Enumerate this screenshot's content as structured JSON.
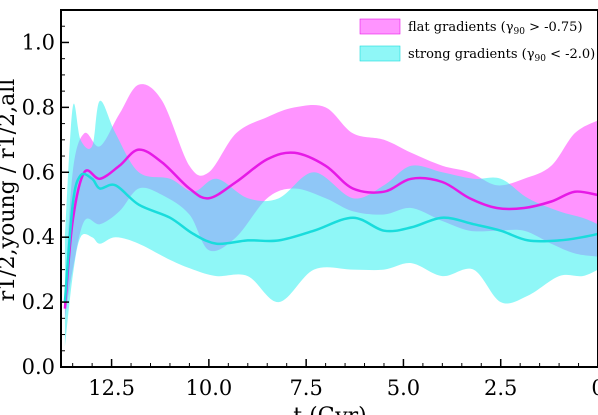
{
  "chart_data": {
    "type": "line",
    "xlabel": "t (Gyr)",
    "ylabel": "r1/2,young / r1/2,all",
    "xlim": [
      13.8,
      0.0
    ],
    "ylim": [
      0.0,
      1.1
    ],
    "x_ticks": [
      12.5,
      10.0,
      7.5,
      5.0,
      2.5,
      0.0
    ],
    "x_tick_labels": [
      "12.5",
      "10.0",
      "7.5",
      "5.0",
      "2.5",
      "0"
    ],
    "y_ticks": [
      0.0,
      0.2,
      0.4,
      0.6,
      0.8,
      1.0
    ],
    "y_tick_labels": [
      "0.0",
      "0.2",
      "0.4",
      "0.6",
      "0.8",
      "1.0"
    ],
    "legend_position": "top-right",
    "series": [
      {
        "name": "flat gradients (γ90 > -0.75)",
        "legend_main": "flat gradients (",
        "legend_gamma": "γ",
        "legend_subscript": "90",
        "legend_tail": " > -0.75)",
        "line_color": "#e619e6",
        "fill_color": "#ff66ff",
        "fill_opacity": 0.7,
        "points": [
          {
            "x": 13.7,
            "y": 0.18,
            "lo": 0.15,
            "hi": 0.22
          },
          {
            "x": 13.5,
            "y": 0.45,
            "lo": 0.3,
            "hi": 0.6
          },
          {
            "x": 13.2,
            "y": 0.6,
            "lo": 0.45,
            "hi": 0.72
          },
          {
            "x": 12.8,
            "y": 0.58,
            "lo": 0.44,
            "hi": 0.68
          },
          {
            "x": 12.3,
            "y": 0.62,
            "lo": 0.48,
            "hi": 0.78
          },
          {
            "x": 11.8,
            "y": 0.67,
            "lo": 0.55,
            "hi": 0.87
          },
          {
            "x": 11.2,
            "y": 0.63,
            "lo": 0.53,
            "hi": 0.82
          },
          {
            "x": 10.5,
            "y": 0.55,
            "lo": 0.47,
            "hi": 0.62
          },
          {
            "x": 10.0,
            "y": 0.52,
            "lo": 0.36,
            "hi": 0.6
          },
          {
            "x": 9.3,
            "y": 0.57,
            "lo": 0.4,
            "hi": 0.72
          },
          {
            "x": 8.5,
            "y": 0.64,
            "lo": 0.52,
            "hi": 0.77
          },
          {
            "x": 7.8,
            "y": 0.66,
            "lo": 0.55,
            "hi": 0.8
          },
          {
            "x": 7.0,
            "y": 0.62,
            "lo": 0.52,
            "hi": 0.8
          },
          {
            "x": 6.3,
            "y": 0.55,
            "lo": 0.48,
            "hi": 0.72
          },
          {
            "x": 5.5,
            "y": 0.54,
            "lo": 0.47,
            "hi": 0.7
          },
          {
            "x": 4.8,
            "y": 0.58,
            "lo": 0.49,
            "hi": 0.66
          },
          {
            "x": 4.0,
            "y": 0.57,
            "lo": 0.45,
            "hi": 0.62
          },
          {
            "x": 3.3,
            "y": 0.52,
            "lo": 0.42,
            "hi": 0.6
          },
          {
            "x": 2.6,
            "y": 0.49,
            "lo": 0.42,
            "hi": 0.56
          },
          {
            "x": 1.9,
            "y": 0.49,
            "lo": 0.42,
            "hi": 0.58
          },
          {
            "x": 1.2,
            "y": 0.51,
            "lo": 0.38,
            "hi": 0.62
          },
          {
            "x": 0.6,
            "y": 0.54,
            "lo": 0.35,
            "hi": 0.72
          },
          {
            "x": 0.0,
            "y": 0.53,
            "lo": 0.34,
            "hi": 0.76
          }
        ]
      },
      {
        "name": "strong gradients (γ90 < -2.0)",
        "legend_main": "strong gradients (",
        "legend_gamma": "γ",
        "legend_subscript": "90",
        "legend_tail": " < -2.0)",
        "line_color": "#19dcdc",
        "fill_color": "#33f0f0",
        "fill_opacity": 0.55,
        "points": [
          {
            "x": 13.7,
            "y": 0.2,
            "lo": 0.06,
            "hi": 0.4
          },
          {
            "x": 13.5,
            "y": 0.5,
            "lo": 0.28,
            "hi": 0.8
          },
          {
            "x": 13.3,
            "y": 0.59,
            "lo": 0.4,
            "hi": 0.7
          },
          {
            "x": 13.0,
            "y": 0.58,
            "lo": 0.4,
            "hi": 0.68
          },
          {
            "x": 12.8,
            "y": 0.55,
            "lo": 0.38,
            "hi": 0.82
          },
          {
            "x": 12.4,
            "y": 0.56,
            "lo": 0.4,
            "hi": 0.72
          },
          {
            "x": 11.8,
            "y": 0.5,
            "lo": 0.38,
            "hi": 0.6
          },
          {
            "x": 11.0,
            "y": 0.46,
            "lo": 0.33,
            "hi": 0.58
          },
          {
            "x": 10.4,
            "y": 0.41,
            "lo": 0.3,
            "hi": 0.54
          },
          {
            "x": 9.8,
            "y": 0.38,
            "lo": 0.28,
            "hi": 0.58
          },
          {
            "x": 9.0,
            "y": 0.39,
            "lo": 0.28,
            "hi": 0.52
          },
          {
            "x": 8.2,
            "y": 0.39,
            "lo": 0.2,
            "hi": 0.52
          },
          {
            "x": 7.3,
            "y": 0.42,
            "lo": 0.3,
            "hi": 0.6
          },
          {
            "x": 6.3,
            "y": 0.46,
            "lo": 0.3,
            "hi": 0.52
          },
          {
            "x": 5.5,
            "y": 0.42,
            "lo": 0.3,
            "hi": 0.56
          },
          {
            "x": 4.8,
            "y": 0.43,
            "lo": 0.32,
            "hi": 0.62
          },
          {
            "x": 4.0,
            "y": 0.46,
            "lo": 0.28,
            "hi": 0.6
          },
          {
            "x": 3.2,
            "y": 0.44,
            "lo": 0.3,
            "hi": 0.58
          },
          {
            "x": 2.5,
            "y": 0.42,
            "lo": 0.2,
            "hi": 0.58
          },
          {
            "x": 1.8,
            "y": 0.39,
            "lo": 0.22,
            "hi": 0.52
          },
          {
            "x": 1.0,
            "y": 0.39,
            "lo": 0.28,
            "hi": 0.48
          },
          {
            "x": 0.4,
            "y": 0.4,
            "lo": 0.28,
            "hi": 0.46
          },
          {
            "x": 0.0,
            "y": 0.41,
            "lo": 0.3,
            "hi": 0.44
          }
        ]
      }
    ]
  }
}
